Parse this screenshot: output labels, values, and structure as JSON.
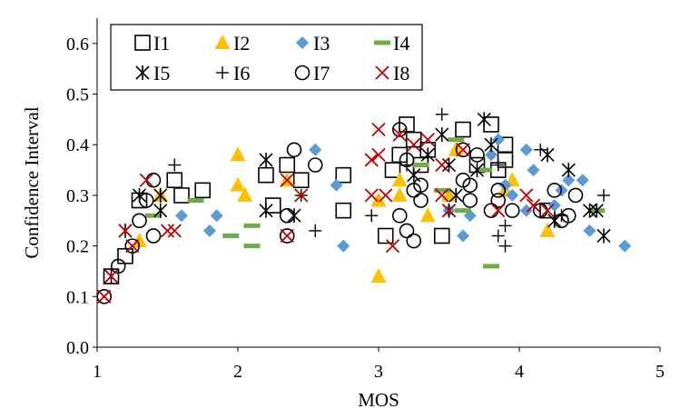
{
  "chart_data": {
    "type": "scatter",
    "title": "",
    "xlabel": "MOS",
    "ylabel": "Confidence Interval",
    "xlim": [
      1,
      5
    ],
    "ylim": [
      0.0,
      0.65
    ],
    "xticks": [
      "1",
      "2",
      "3",
      "4",
      "5"
    ],
    "yticks": [
      "0.0",
      "0.1",
      "0.2",
      "0.3",
      "0.4",
      "0.5",
      "0.6"
    ],
    "legend_position": "top-left",
    "series": [
      {
        "name": "I1",
        "marker": "square-open",
        "color": "#000000",
        "points": [
          [
            1.1,
            0.14
          ],
          [
            1.2,
            0.18
          ],
          [
            1.3,
            0.29
          ],
          [
            1.55,
            0.33
          ],
          [
            1.6,
            0.3
          ],
          [
            1.75,
            0.31
          ],
          [
            2.2,
            0.34
          ],
          [
            2.25,
            0.28
          ],
          [
            2.35,
            0.36
          ],
          [
            2.45,
            0.33
          ],
          [
            2.75,
            0.27
          ],
          [
            2.75,
            0.34
          ],
          [
            3.05,
            0.22
          ],
          [
            3.1,
            0.35
          ],
          [
            3.15,
            0.38
          ],
          [
            3.2,
            0.44
          ],
          [
            3.25,
            0.41
          ],
          [
            3.3,
            0.36
          ],
          [
            3.35,
            0.39
          ],
          [
            3.45,
            0.22
          ],
          [
            3.6,
            0.43
          ],
          [
            3.7,
            0.36
          ],
          [
            3.8,
            0.44
          ],
          [
            3.85,
            0.35
          ],
          [
            3.9,
            0.4
          ],
          [
            3.9,
            0.37
          ],
          [
            4.2,
            0.27
          ]
        ]
      },
      {
        "name": "I2",
        "marker": "triangle",
        "color": "#ffc000",
        "points": [
          [
            1.3,
            0.21
          ],
          [
            1.45,
            0.3
          ],
          [
            2.0,
            0.38
          ],
          [
            2.0,
            0.32
          ],
          [
            2.05,
            0.3
          ],
          [
            2.35,
            0.33
          ],
          [
            3.0,
            0.29
          ],
          [
            3.0,
            0.14
          ],
          [
            3.15,
            0.3
          ],
          [
            3.15,
            0.33
          ],
          [
            3.35,
            0.26
          ],
          [
            3.5,
            0.3
          ],
          [
            3.55,
            0.39
          ],
          [
            3.9,
            0.31
          ],
          [
            3.95,
            0.33
          ],
          [
            4.2,
            0.23
          ]
        ]
      },
      {
        "name": "I3",
        "marker": "diamond",
        "color": "#5b9bd5",
        "points": [
          [
            1.6,
            0.26
          ],
          [
            1.8,
            0.23
          ],
          [
            1.85,
            0.26
          ],
          [
            2.55,
            0.39
          ],
          [
            2.7,
            0.32
          ],
          [
            2.75,
            0.2
          ],
          [
            3.5,
            0.27
          ],
          [
            3.6,
            0.22
          ],
          [
            3.65,
            0.26
          ],
          [
            3.8,
            0.38
          ],
          [
            3.85,
            0.41
          ],
          [
            3.9,
            0.32
          ],
          [
            3.95,
            0.3
          ],
          [
            4.05,
            0.39
          ],
          [
            4.05,
            0.27
          ],
          [
            4.1,
            0.35
          ],
          [
            4.25,
            0.28
          ],
          [
            4.3,
            0.31
          ],
          [
            4.35,
            0.33
          ],
          [
            4.45,
            0.33
          ],
          [
            4.5,
            0.23
          ],
          [
            4.75,
            0.2
          ]
        ]
      },
      {
        "name": "I4",
        "marker": "dash",
        "color": "#70ad47",
        "points": [
          [
            1.4,
            0.26
          ],
          [
            1.7,
            0.29
          ],
          [
            1.95,
            0.22
          ],
          [
            2.1,
            0.24
          ],
          [
            2.1,
            0.2
          ],
          [
            3.3,
            0.36
          ],
          [
            3.45,
            0.31
          ],
          [
            3.55,
            0.41
          ],
          [
            3.6,
            0.27
          ],
          [
            3.8,
            0.16
          ],
          [
            3.75,
            0.35
          ],
          [
            4.55,
            0.27
          ]
        ]
      },
      {
        "name": "I5",
        "marker": "asterisk",
        "color": "#000000",
        "points": [
          [
            1.1,
            0.14
          ],
          [
            1.2,
            0.23
          ],
          [
            1.3,
            0.3
          ],
          [
            1.45,
            0.3
          ],
          [
            1.45,
            0.27
          ],
          [
            2.2,
            0.37
          ],
          [
            2.2,
            0.27
          ],
          [
            2.4,
            0.26
          ],
          [
            3.25,
            0.34
          ],
          [
            3.35,
            0.38
          ],
          [
            3.45,
            0.42
          ],
          [
            3.5,
            0.36
          ],
          [
            3.55,
            0.3
          ],
          [
            3.5,
            0.27
          ],
          [
            3.7,
            0.35
          ],
          [
            3.75,
            0.45
          ],
          [
            3.8,
            0.4
          ],
          [
            4.2,
            0.38
          ],
          [
            4.25,
            0.25
          ],
          [
            4.35,
            0.35
          ],
          [
            4.5,
            0.27
          ],
          [
            4.55,
            0.27
          ],
          [
            4.6,
            0.22
          ]
        ]
      },
      {
        "name": "I6",
        "marker": "plus",
        "color": "#000000",
        "points": [
          [
            1.55,
            0.36
          ],
          [
            2.45,
            0.3
          ],
          [
            2.55,
            0.23
          ],
          [
            2.95,
            0.26
          ],
          [
            3.2,
            0.36
          ],
          [
            3.45,
            0.46
          ],
          [
            3.85,
            0.36
          ],
          [
            3.85,
            0.22
          ],
          [
            3.9,
            0.2
          ],
          [
            3.9,
            0.24
          ],
          [
            4.15,
            0.39
          ],
          [
            4.3,
            0.26
          ],
          [
            4.6,
            0.3
          ]
        ]
      },
      {
        "name": "I7",
        "marker": "circle-open",
        "color": "#000000",
        "points": [
          [
            1.05,
            0.1
          ],
          [
            1.15,
            0.16
          ],
          [
            1.25,
            0.2
          ],
          [
            1.3,
            0.25
          ],
          [
            1.35,
            0.29
          ],
          [
            1.4,
            0.33
          ],
          [
            1.4,
            0.22
          ],
          [
            2.35,
            0.22
          ],
          [
            2.35,
            0.26
          ],
          [
            2.4,
            0.39
          ],
          [
            2.55,
            0.36
          ],
          [
            3.15,
            0.43
          ],
          [
            3.15,
            0.26
          ],
          [
            3.2,
            0.37
          ],
          [
            3.2,
            0.23
          ],
          [
            3.25,
            0.21
          ],
          [
            3.25,
            0.31
          ],
          [
            3.3,
            0.32
          ],
          [
            3.3,
            0.29
          ],
          [
            3.6,
            0.39
          ],
          [
            3.6,
            0.33
          ],
          [
            3.65,
            0.29
          ],
          [
            3.65,
            0.32
          ],
          [
            3.7,
            0.38
          ],
          [
            3.8,
            0.27
          ],
          [
            3.85,
            0.29
          ],
          [
            3.85,
            0.31
          ],
          [
            3.95,
            0.27
          ],
          [
            4.15,
            0.27
          ],
          [
            4.25,
            0.31
          ],
          [
            4.3,
            0.25
          ],
          [
            4.35,
            0.26
          ],
          [
            4.4,
            0.3
          ]
        ]
      },
      {
        "name": "I8",
        "marker": "x",
        "color": "#c00000",
        "points": [
          [
            1.05,
            0.1
          ],
          [
            1.1,
            0.14
          ],
          [
            1.2,
            0.23
          ],
          [
            1.25,
            0.2
          ],
          [
            1.35,
            0.33
          ],
          [
            1.5,
            0.23
          ],
          [
            1.55,
            0.23
          ],
          [
            2.35,
            0.22
          ],
          [
            2.35,
            0.33
          ],
          [
            2.45,
            0.3
          ],
          [
            2.95,
            0.37
          ],
          [
            2.95,
            0.3
          ],
          [
            3.0,
            0.43
          ],
          [
            3.0,
            0.38
          ],
          [
            3.05,
            0.3
          ],
          [
            3.1,
            0.2
          ],
          [
            3.15,
            0.42
          ],
          [
            3.25,
            0.4
          ],
          [
            3.35,
            0.41
          ],
          [
            3.45,
            0.36
          ],
          [
            3.45,
            0.3
          ],
          [
            3.5,
            0.27
          ],
          [
            3.6,
            0.39
          ],
          [
            3.85,
            0.27
          ],
          [
            4.05,
            0.3
          ],
          [
            4.1,
            0.28
          ],
          [
            4.2,
            0.27
          ]
        ]
      }
    ]
  }
}
